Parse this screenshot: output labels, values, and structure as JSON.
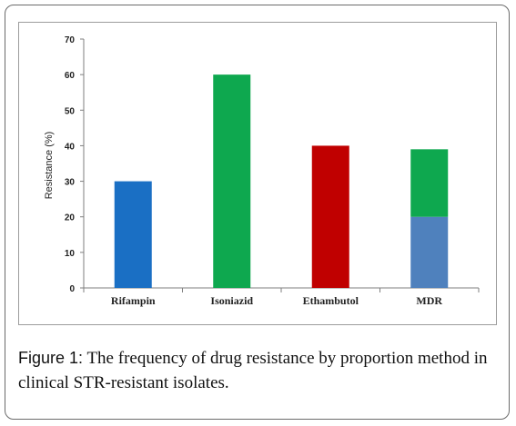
{
  "figure": {
    "label": "Figure 1:",
    "caption": " The frequency of drug resistance by proportion method in clinical STR-resistant isolates."
  },
  "chart_data": {
    "type": "bar",
    "ylabel": "Resistance (%)",
    "xlabel": "",
    "ylim": [
      0,
      70
    ],
    "yticks": [
      0,
      10,
      20,
      30,
      40,
      50,
      60,
      70
    ],
    "grid": false,
    "legend": "none",
    "categories": [
      "Rifampin",
      "Isoniazid",
      "Ethambutol",
      "MDR"
    ],
    "bars": [
      {
        "category": "Rifampin",
        "segments": [
          {
            "value": 30,
            "color": "#1a6fc4"
          }
        ]
      },
      {
        "category": "Isoniazid",
        "segments": [
          {
            "value": 60,
            "color": "#0ea84f"
          }
        ]
      },
      {
        "category": "Ethambutol",
        "segments": [
          {
            "value": 40,
            "color": "#c00000"
          }
        ]
      },
      {
        "category": "MDR",
        "segments": [
          {
            "value": 20,
            "color": "#4f81bd"
          },
          {
            "value": 19,
            "color": "#0ea84f"
          }
        ]
      }
    ]
  }
}
